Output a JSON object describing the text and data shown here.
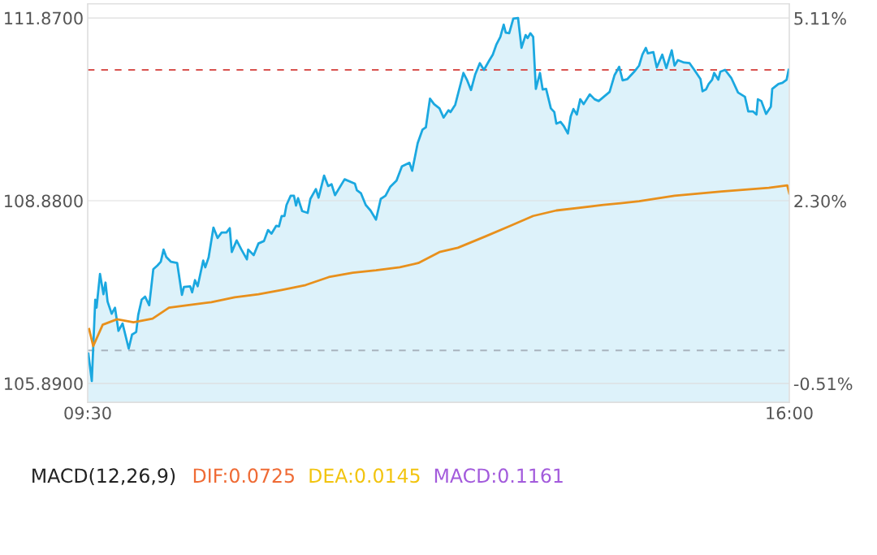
{
  "chart_data": [
    {
      "type": "line",
      "series": [
        {
          "type": "area",
          "color": "#1ba8e0",
          "x": [
            9.506,
            9.538,
            9.57,
            9.582,
            9.614,
            9.646,
            9.665,
            9.684,
            9.722,
            9.753,
            9.785,
            9.823,
            9.88,
            9.911,
            9.949,
            9.968,
            10.0,
            10.032,
            10.07,
            10.108,
            10.146,
            10.177,
            10.203,
            10.228,
            10.272,
            10.329,
            10.373,
            10.392,
            10.449,
            10.468,
            10.494,
            10.519,
            10.57,
            10.589,
            10.62,
            10.665,
            10.703,
            10.741,
            10.785,
            10.816,
            10.835,
            10.88,
            10.924,
            10.975,
            10.987,
            11.038,
            11.082,
            11.133,
            11.171,
            11.203,
            11.247,
            11.272,
            11.297,
            11.323,
            11.342,
            11.38,
            11.411,
            11.43,
            11.449,
            11.487,
            11.538,
            11.563,
            11.614,
            11.639,
            11.69,
            11.728,
            11.759,
            11.791,
            11.88,
            11.975,
            11.994,
            12.032,
            12.076,
            12.12,
            12.171,
            12.215,
            12.259,
            12.304,
            12.361,
            12.411,
            12.481,
            12.506,
            12.557,
            12.601,
            12.633,
            12.671,
            12.709,
            12.759,
            12.797,
            12.842,
            12.861,
            12.905,
            12.981,
            13.013,
            13.051,
            13.089,
            13.133,
            13.171,
            13.222,
            13.253,
            13.285,
            13.323,
            13.354,
            13.373,
            13.405,
            13.443,
            13.487,
            13.519,
            13.557,
            13.576,
            13.601,
            13.627,
            13.652,
            13.69,
            13.715,
            13.747,
            13.791,
            13.823,
            13.842,
            13.88,
            13.911,
            13.949,
            13.975,
            14.0,
            14.032,
            14.063,
            14.095,
            14.152,
            14.196,
            14.234,
            14.335,
            14.38,
            14.424,
            14.456,
            14.5,
            14.563,
            14.608,
            14.639,
            14.671,
            14.69,
            14.741,
            14.772,
            14.823,
            14.861,
            14.911,
            14.937,
            14.968,
            15.025,
            15.076,
            15.12,
            15.177,
            15.196,
            15.228,
            15.253,
            15.285,
            15.304,
            15.342,
            15.361,
            15.405,
            15.462,
            15.525,
            15.589,
            15.62,
            15.665,
            15.696,
            15.709,
            15.741,
            15.785,
            15.829,
            15.842,
            15.899,
            15.937,
            15.975,
            15.994
          ],
          "values": [
            106.38,
            105.93,
            107.26,
            107.13,
            107.68,
            107.35,
            107.54,
            107.23,
            107.03,
            107.13,
            106.75,
            106.87,
            106.46,
            106.69,
            106.73,
            107.01,
            107.26,
            107.31,
            107.17,
            107.76,
            107.82,
            107.88,
            108.08,
            107.96,
            107.88,
            107.86,
            107.34,
            107.47,
            107.48,
            107.38,
            107.58,
            107.48,
            107.9,
            107.79,
            107.95,
            108.44,
            108.27,
            108.36,
            108.36,
            108.43,
            108.04,
            108.23,
            108.08,
            107.92,
            108.08,
            107.99,
            108.18,
            108.22,
            108.4,
            108.34,
            108.47,
            108.46,
            108.63,
            108.63,
            108.81,
            108.96,
            108.96,
            108.8,
            108.92,
            108.71,
            108.68,
            108.91,
            109.07,
            108.93,
            109.29,
            109.12,
            109.15,
            108.97,
            109.23,
            109.16,
            109.05,
            109.0,
            108.81,
            108.72,
            108.57,
            108.91,
            108.96,
            109.11,
            109.21,
            109.44,
            109.5,
            109.37,
            109.82,
            110.04,
            110.08,
            110.55,
            110.46,
            110.39,
            110.24,
            110.36,
            110.33,
            110.45,
            110.97,
            110.86,
            110.69,
            110.94,
            111.13,
            111.02,
            111.18,
            111.27,
            111.43,
            111.56,
            111.76,
            111.63,
            111.62,
            111.86,
            111.87,
            111.38,
            111.59,
            111.54,
            111.62,
            111.56,
            110.71,
            110.97,
            110.7,
            110.71,
            110.39,
            110.33,
            110.14,
            110.17,
            110.1,
            109.98,
            110.26,
            110.38,
            110.29,
            110.54,
            110.46,
            110.62,
            110.54,
            110.51,
            110.66,
            110.93,
            111.07,
            110.85,
            110.87,
            110.99,
            111.09,
            111.27,
            111.38,
            111.29,
            111.31,
            111.06,
            111.27,
            111.05,
            111.34,
            111.09,
            111.18,
            111.14,
            111.13,
            111.02,
            110.87,
            110.67,
            110.7,
            110.79,
            110.86,
            110.97,
            110.86,
            110.99,
            111.02,
            110.89,
            110.65,
            110.58,
            110.34,
            110.34,
            110.29,
            110.54,
            110.51,
            110.3,
            110.42,
            110.71,
            110.79,
            110.81,
            110.86,
            111.02
          ]
        },
        {
          "type": "line",
          "color": "#e8901c",
          "x": [
            9.513,
            9.551,
            9.639,
            9.772,
            9.924,
            10.101,
            10.253,
            10.424,
            10.646,
            10.861,
            11.082,
            11.297,
            11.519,
            11.734,
            11.956,
            12.171,
            12.392,
            12.563,
            12.759,
            12.93,
            13.19,
            13.405,
            13.627,
            13.842,
            14.278,
            14.608,
            14.937,
            15.373,
            15.81,
            15.981,
            16.0
          ],
          "values": [
            106.78,
            106.5,
            106.85,
            106.94,
            106.89,
            106.95,
            107.13,
            107.17,
            107.22,
            107.3,
            107.35,
            107.42,
            107.5,
            107.63,
            107.7,
            107.74,
            107.79,
            107.86,
            108.04,
            108.11,
            108.3,
            108.46,
            108.63,
            108.72,
            108.81,
            108.87,
            108.96,
            109.03,
            109.09,
            109.13,
            109.0
          ]
        }
      ],
      "xlim": [
        9.5,
        16
      ],
      "xticks": [
        {
          "value": 9.5,
          "label": "09:30"
        },
        {
          "value": 16,
          "label": "16:00"
        }
      ],
      "ylim": [
        105.58,
        112.1
      ],
      "yticks": [
        {
          "value": 105.89,
          "label": "105.8900"
        },
        {
          "value": 108.88,
          "label": "108.8800"
        },
        {
          "value": 111.87,
          "label": "111.8700"
        }
      ],
      "y2lim": [
        -0.8,
        5.33
      ],
      "y2ticks": [
        {
          "value": -0.51,
          "label": "-0.51%"
        },
        {
          "value": 2.3,
          "label": "2.30%"
        },
        {
          "value": 5.11,
          "label": "5.11%"
        }
      ],
      "ref_lines": [
        {
          "axis": "y",
          "value": 111.02,
          "color": "#d9534f",
          "line_style": "dashed"
        },
        {
          "axis": "y",
          "value": 106.43,
          "color": "#a9b4be",
          "line_style": "dashed"
        }
      ],
      "grid": "y"
    },
    {
      "type": "other",
      "title": "MACD(12,26,9)",
      "annotations": [
        "DIF:0.0725",
        "DEA:0.0145",
        "MACD:0.1161"
      ],
      "colors": [
        "#ef6b35",
        "#f2c40f",
        "#a35bdc"
      ]
    }
  ]
}
